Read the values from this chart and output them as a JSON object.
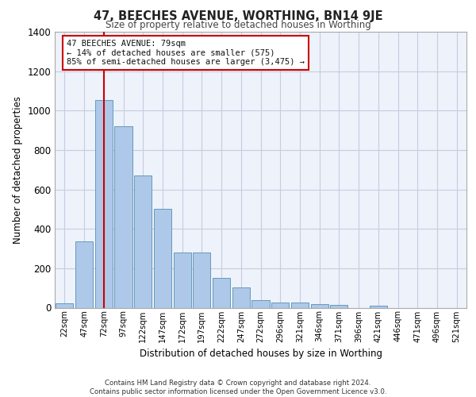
{
  "title": "47, BEECHES AVENUE, WORTHING, BN14 9JE",
  "subtitle": "Size of property relative to detached houses in Worthing",
  "xlabel": "Distribution of detached houses by size in Worthing",
  "ylabel": "Number of detached properties",
  "bar_labels": [
    "22sqm",
    "47sqm",
    "72sqm",
    "97sqm",
    "122sqm",
    "147sqm",
    "172sqm",
    "197sqm",
    "222sqm",
    "247sqm",
    "272sqm",
    "296sqm",
    "321sqm",
    "346sqm",
    "371sqm",
    "396sqm",
    "421sqm",
    "446sqm",
    "471sqm",
    "496sqm",
    "521sqm"
  ],
  "bar_values": [
    22,
    335,
    1055,
    920,
    670,
    500,
    278,
    278,
    153,
    103,
    38,
    25,
    25,
    20,
    13,
    0,
    12,
    0,
    0,
    0,
    0
  ],
  "bar_color": "#adc8e8",
  "bar_edge_color": "#6699bb",
  "vline_x": 2,
  "vline_color": "#cc0000",
  "ylim": [
    0,
    1400
  ],
  "annotation_text": "47 BEECHES AVENUE: 79sqm\n← 14% of detached houses are smaller (575)\n85% of semi-detached houses are larger (3,475) →",
  "annotation_box_color": "#ffffff",
  "annotation_box_edge": "#cc0000",
  "footer_text": "Contains HM Land Registry data © Crown copyright and database right 2024.\nContains public sector information licensed under the Open Government Licence v3.0.",
  "bg_color": "#eef2fa",
  "grid_color": "#c8cce0"
}
